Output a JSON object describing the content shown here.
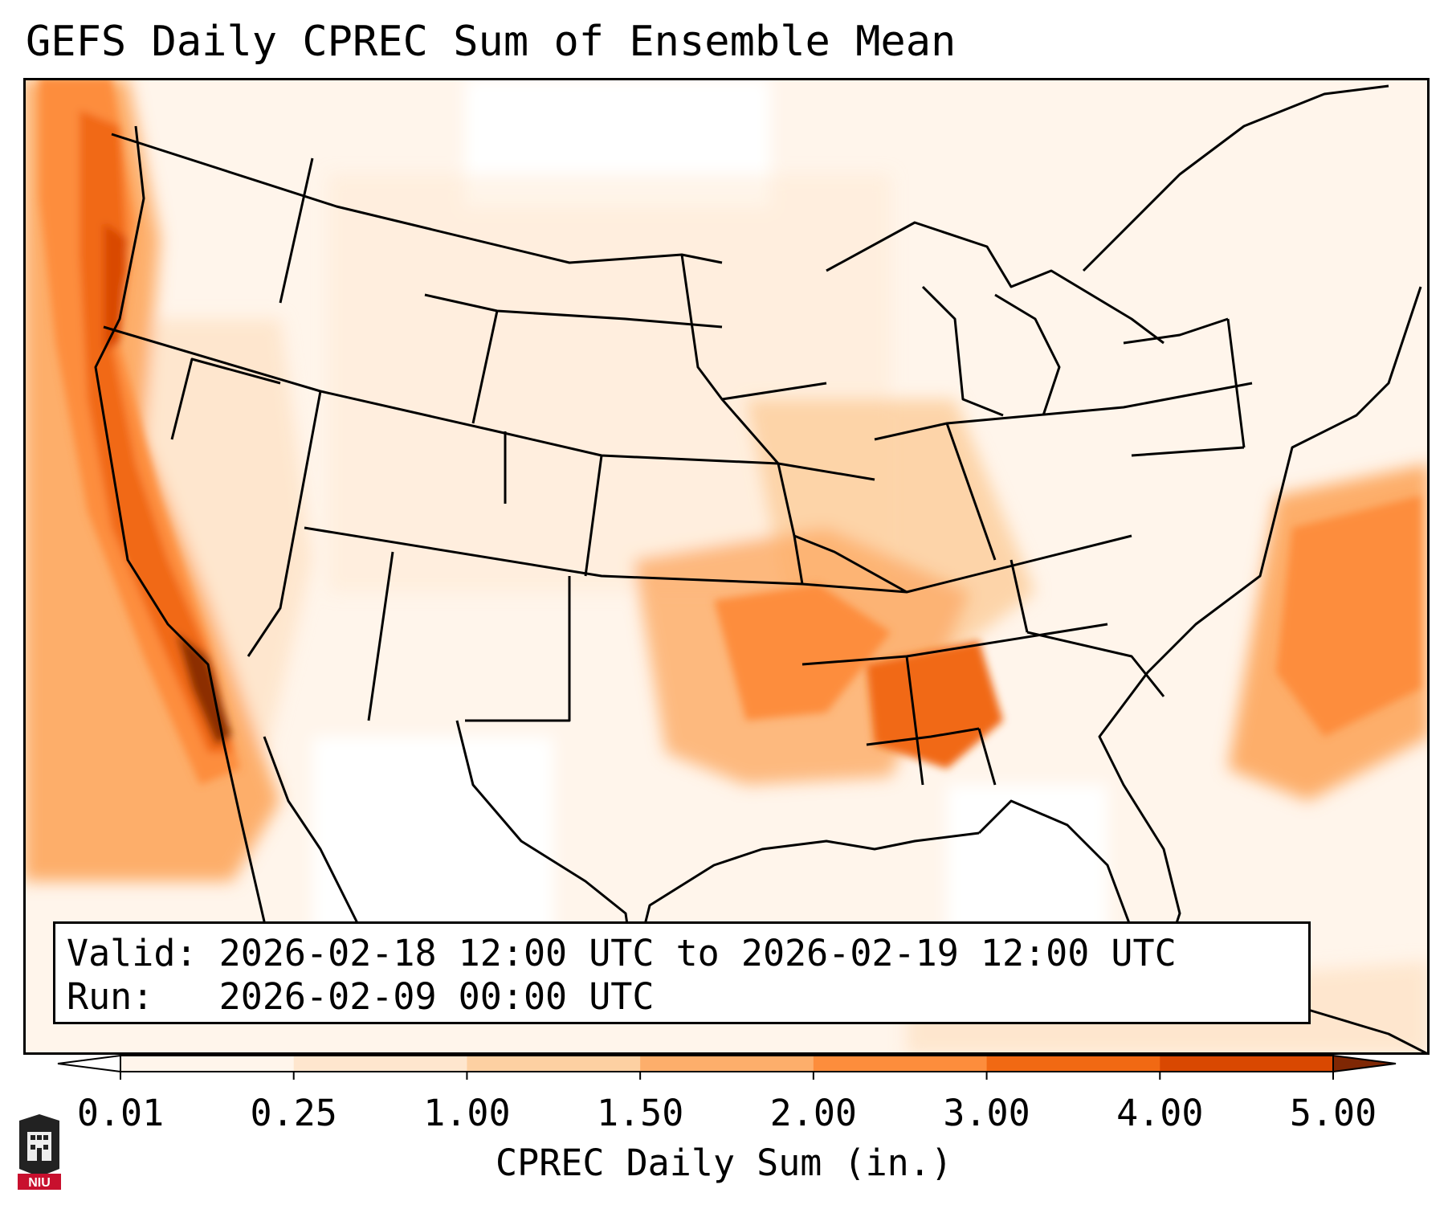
{
  "title": "GEFS Daily CPREC Sum of Ensemble Mean",
  "info": {
    "valid_line": "Valid: 2026-02-18 12:00 UTC to 2026-02-19 12:00 UTC",
    "run_line": "Run:   2026-02-09 00:00 UTC"
  },
  "colorbar": {
    "label": "CPREC Daily Sum (in.)",
    "ticks": [
      "0.01",
      "0.25",
      "1.00",
      "1.50",
      "2.00",
      "3.00",
      "4.00",
      "5.00"
    ],
    "colors": [
      "#fff5eb",
      "#fee6ce",
      "#fdd0a2",
      "#fdae6b",
      "#fd8d3c",
      "#f16913",
      "#d94801",
      "#8c2d04"
    ],
    "extend_min_color": "#ffffff",
    "extend_max_color": "#7f2704"
  },
  "map": {
    "region": "Contiguous United States",
    "variable": "CPREC",
    "units": "in."
  },
  "logo": {
    "text": "NIU",
    "color": "#c8102e"
  }
}
